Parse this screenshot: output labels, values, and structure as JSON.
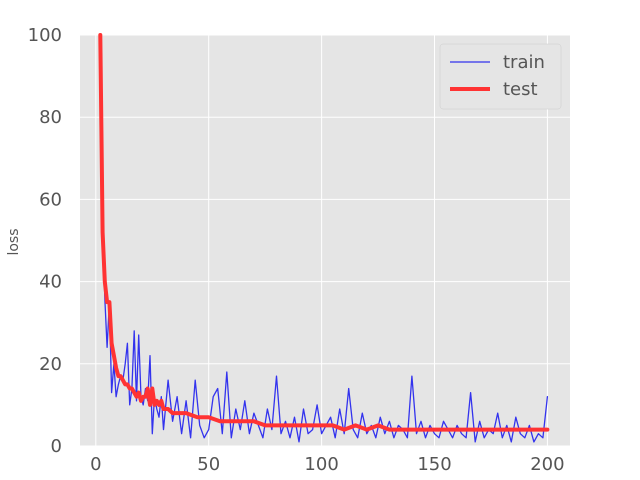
{
  "chart_data": {
    "type": "line",
    "title": "",
    "xlabel": "",
    "ylabel": "loss",
    "xlim": [
      -7,
      210
    ],
    "ylim": [
      0,
      100
    ],
    "xticks": [
      0,
      50,
      100,
      150,
      200
    ],
    "yticks": [
      0,
      20,
      40,
      60,
      80,
      100
    ],
    "grid": true,
    "legend_position": "top-right",
    "background": "#e5e5e5",
    "series": [
      {
        "name": "train",
        "color": "#3333ee",
        "x": [
          2,
          3,
          4,
          5,
          6,
          7,
          8,
          9,
          10,
          11,
          12,
          13,
          14,
          15,
          16,
          17,
          18,
          19,
          20,
          21,
          22,
          23,
          24,
          25,
          26,
          27,
          28,
          29,
          30,
          32,
          34,
          36,
          38,
          40,
          42,
          44,
          46,
          48,
          50,
          52,
          54,
          56,
          58,
          60,
          62,
          64,
          66,
          68,
          70,
          72,
          74,
          76,
          78,
          80,
          82,
          84,
          86,
          88,
          90,
          92,
          94,
          96,
          98,
          100,
          102,
          104,
          106,
          108,
          110,
          112,
          114,
          116,
          118,
          120,
          122,
          124,
          126,
          128,
          130,
          132,
          134,
          136,
          138,
          140,
          142,
          144,
          146,
          148,
          150,
          152,
          154,
          156,
          158,
          160,
          162,
          164,
          166,
          168,
          170,
          172,
          174,
          176,
          178,
          180,
          182,
          184,
          186,
          188,
          190,
          192,
          194,
          196,
          198,
          200
        ],
        "y": [
          100,
          55,
          36,
          24,
          35,
          13,
          20,
          12,
          15,
          17,
          16,
          20,
          25,
          10,
          14,
          28,
          11,
          27,
          12,
          10,
          14,
          11,
          22,
          3,
          12,
          9,
          7,
          12,
          4,
          16,
          6,
          12,
          3,
          11,
          2,
          16,
          5,
          2,
          4,
          12,
          14,
          3,
          18,
          2,
          9,
          4,
          11,
          3,
          8,
          5,
          2,
          9,
          4,
          17,
          3,
          6,
          2,
          7,
          1,
          9,
          3,
          4,
          10,
          3,
          5,
          7,
          2,
          9,
          3,
          14,
          4,
          2,
          8,
          3,
          5,
          2,
          7,
          3,
          6,
          2,
          5,
          4,
          2,
          17,
          3,
          6,
          2,
          5,
          3,
          2,
          6,
          4,
          2,
          5,
          3,
          2,
          13,
          1,
          6,
          2,
          4,
          3,
          8,
          2,
          5,
          1,
          7,
          3,
          2,
          5,
          1,
          3,
          2,
          12
        ]
      },
      {
        "name": "test",
        "color": "#ff3333",
        "x": [
          2,
          3,
          4,
          5,
          6,
          7,
          8,
          9,
          10,
          11,
          12,
          13,
          14,
          15,
          16,
          17,
          18,
          19,
          20,
          21,
          22,
          23,
          24,
          25,
          26,
          27,
          28,
          29,
          30,
          32,
          34,
          36,
          38,
          40,
          45,
          50,
          55,
          60,
          65,
          70,
          75,
          80,
          85,
          90,
          95,
          100,
          105,
          110,
          115,
          120,
          125,
          130,
          135,
          140,
          145,
          150,
          155,
          160,
          165,
          170,
          175,
          180,
          185,
          190,
          195,
          200
        ],
        "y": [
          100,
          52,
          40,
          35,
          35,
          25,
          22,
          19,
          17,
          17,
          16,
          15,
          15,
          14,
          14,
          13,
          12,
          13,
          11,
          12,
          12,
          14,
          10,
          14,
          10,
          11,
          10,
          11,
          9,
          9,
          8,
          8,
          8,
          8,
          7,
          7,
          6,
          6,
          6,
          6,
          5,
          5,
          5,
          5,
          5,
          5,
          5,
          4,
          5,
          4,
          5,
          4,
          4,
          4,
          4,
          4,
          4,
          4,
          4,
          4,
          4,
          4,
          4,
          4,
          4,
          4
        ]
      }
    ]
  }
}
